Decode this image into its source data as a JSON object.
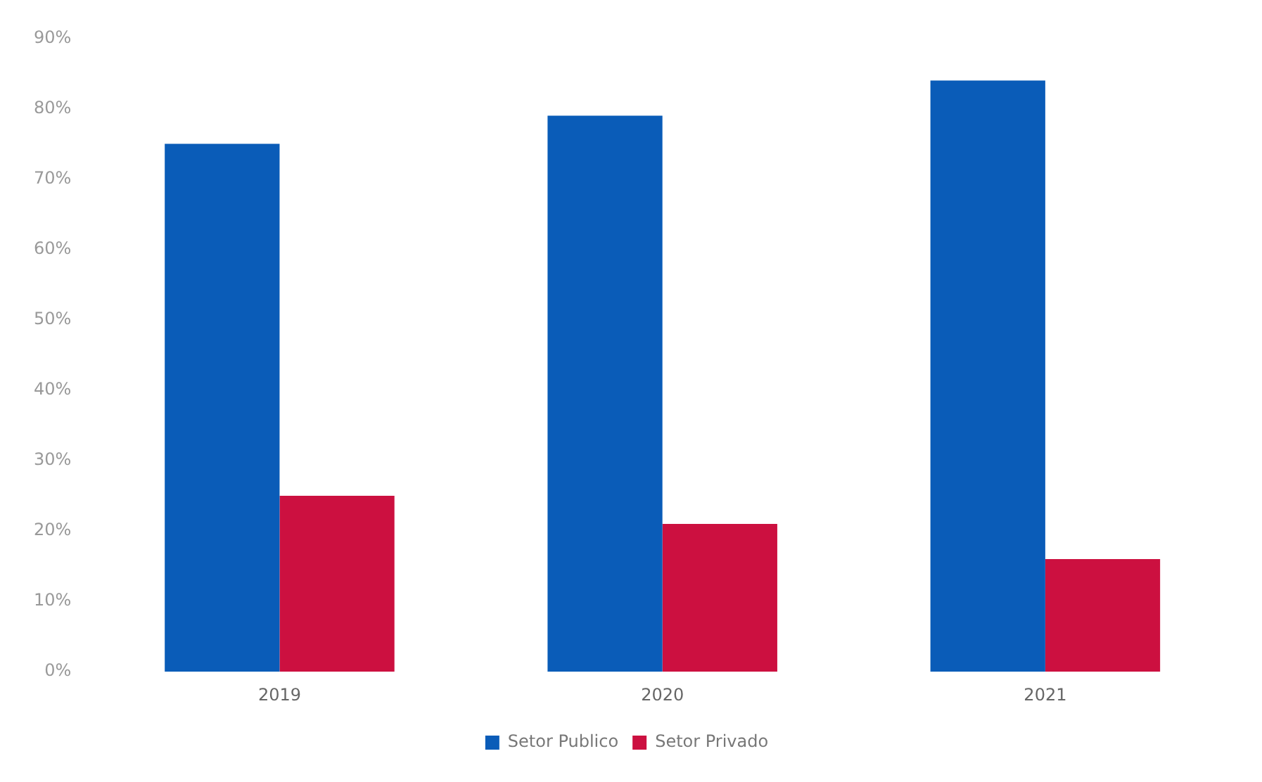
{
  "chart_data": {
    "type": "bar",
    "categories": [
      "2019",
      "2020",
      "2021"
    ],
    "series": [
      {
        "name": "Setor Publico",
        "color": "#0a5cb8",
        "values": [
          75,
          79,
          84
        ]
      },
      {
        "name": "Setor Privado",
        "color": "#cc1040",
        "values": [
          25,
          21,
          16
        ]
      }
    ],
    "ylim": [
      0,
      90
    ],
    "yticks": [
      {
        "value": 0,
        "label": "0%"
      },
      {
        "value": 10,
        "label": "10%"
      },
      {
        "value": 20,
        "label": "20%"
      },
      {
        "value": 30,
        "label": "30%"
      },
      {
        "value": 40,
        "label": "40%"
      },
      {
        "value": 50,
        "label": "50%"
      },
      {
        "value": 60,
        "label": "60%"
      },
      {
        "value": 70,
        "label": "70%"
      },
      {
        "value": 80,
        "label": "80%"
      },
      {
        "value": 90,
        "label": "90%"
      }
    ],
    "grid": false,
    "legend": "bottom"
  }
}
